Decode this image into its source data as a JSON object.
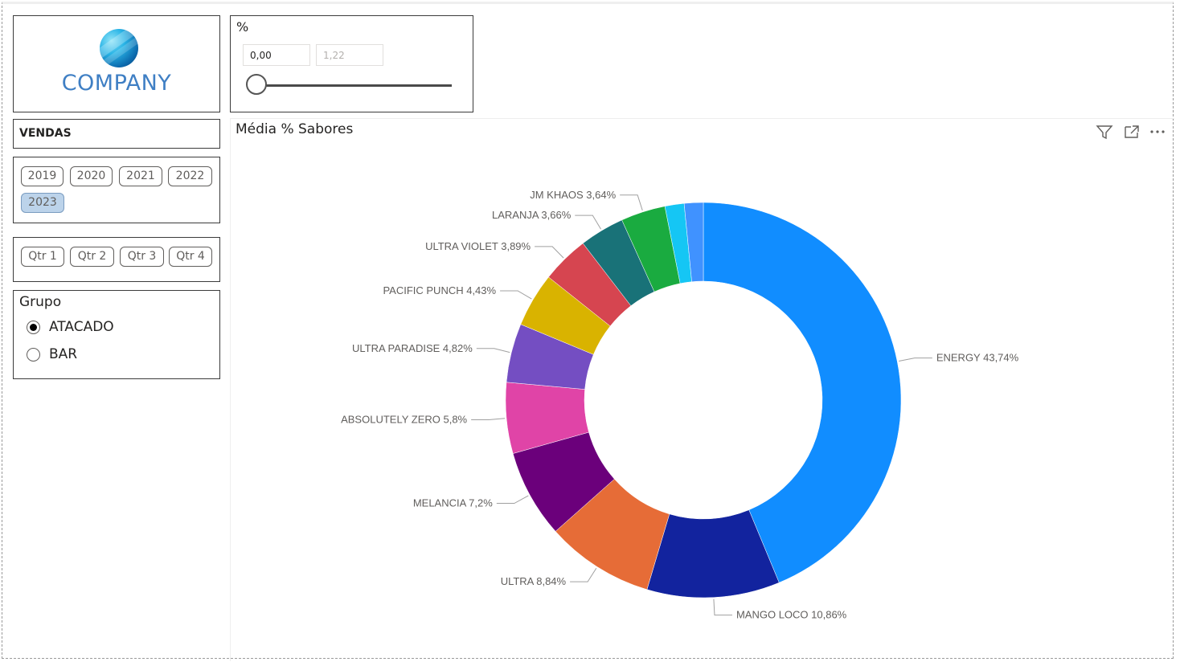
{
  "logo": {
    "text": "COMPANY"
  },
  "percent_slicer": {
    "title": "%",
    "min_value": "0,00",
    "max_value": "1,22",
    "position": 0
  },
  "vendas": {
    "title": "VENDAS"
  },
  "years": {
    "items": [
      {
        "label": "2019",
        "selected": false
      },
      {
        "label": "2020",
        "selected": false
      },
      {
        "label": "2021",
        "selected": false
      },
      {
        "label": "2022",
        "selected": false
      },
      {
        "label": "2023",
        "selected": true
      }
    ]
  },
  "quarters": {
    "items": [
      {
        "label": "Qtr 1"
      },
      {
        "label": "Qtr 2"
      },
      {
        "label": "Qtr 3"
      },
      {
        "label": "Qtr 4"
      }
    ]
  },
  "grupo": {
    "title": "Grupo",
    "options": [
      {
        "label": "ATACADO",
        "selected": true
      },
      {
        "label": "BAR",
        "selected": false
      }
    ]
  },
  "chart_header": {
    "icons": [
      "filter-icon",
      "focus-mode-icon",
      "more-options-icon"
    ]
  },
  "chart_data": {
    "type": "donut",
    "title": "Média % Sabores",
    "slices": [
      {
        "label": "ENERGY 43,74%",
        "value": 43.74,
        "color": "#118DFF"
      },
      {
        "label": "MANGO LOCO 10,86%",
        "value": 10.86,
        "color": "#12239E"
      },
      {
        "label": "ULTRA 8,84%",
        "value": 8.84,
        "color": "#E66C37"
      },
      {
        "label": "MELANCIA 7,2%",
        "value": 7.2,
        "color": "#6B007B"
      },
      {
        "label": "ABSOLUTELY ZERO 5,8%",
        "value": 5.8,
        "color": "#E044A7"
      },
      {
        "label": "ULTRA PARADISE 4,82%",
        "value": 4.82,
        "color": "#744EC2"
      },
      {
        "label": "PACIFIC PUNCH 4,43%",
        "value": 4.43,
        "color": "#D9B300"
      },
      {
        "label": "ULTRA VIOLET 3,89%",
        "value": 3.89,
        "color": "#D64550"
      },
      {
        "label": "LARANJA 3,66%",
        "value": 3.66,
        "color": "#197278"
      },
      {
        "label": "JM KHAOS 3,64%",
        "value": 3.64,
        "color": "#1AAB40"
      },
      {
        "label": "",
        "value": 1.57,
        "color": "#15C6F4"
      },
      {
        "label": "",
        "value": 1.55,
        "color": "#4092FF"
      }
    ]
  }
}
